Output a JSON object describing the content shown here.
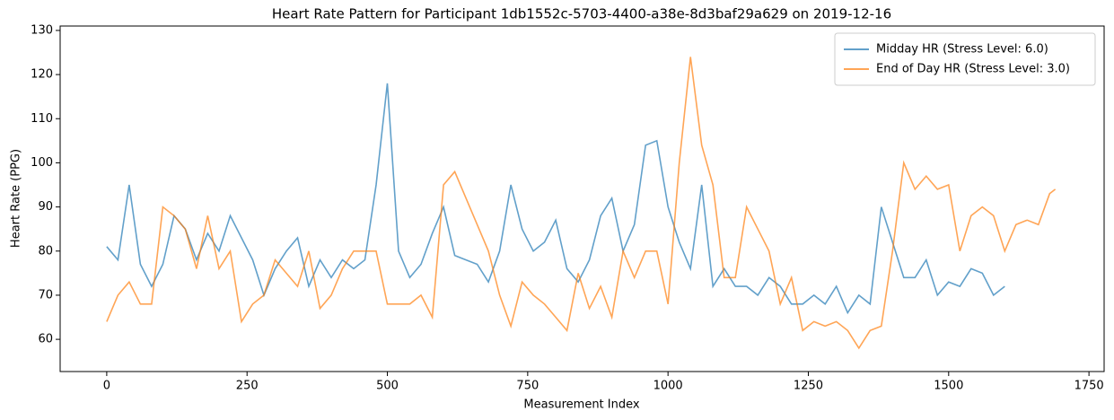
{
  "chart_data": {
    "type": "line",
    "title": "Heart Rate Pattern for Participant 1db1552c-5703-4400-a38e-8d3baf29a629 on 2019-12-16",
    "x_label": "Measurement Index",
    "y_label": "Heart Rate (PPG)",
    "xlim": [
      -83,
      1777
    ],
    "ylim": [
      52.7,
      131
    ],
    "xticks": [
      0,
      250,
      500,
      750,
      1000,
      1250,
      1500,
      1750
    ],
    "yticks": [
      60,
      70,
      80,
      90,
      100,
      110,
      120,
      130
    ],
    "legend": "upper right",
    "series": [
      {
        "name": "Midday HR (Stress Level: 6.0)",
        "color": "#1f77b4",
        "x": [
          0,
          20,
          40,
          60,
          80,
          100,
          120,
          140,
          160,
          180,
          200,
          220,
          240,
          260,
          280,
          300,
          320,
          340,
          360,
          380,
          400,
          420,
          440,
          460,
          480,
          500,
          520,
          540,
          560,
          580,
          600,
          620,
          640,
          660,
          680,
          700,
          720,
          740,
          760,
          780,
          800,
          820,
          840,
          860,
          880,
          900,
          920,
          940,
          960,
          980,
          1000,
          1020,
          1040,
          1060,
          1080,
          1100,
          1120,
          1140,
          1160,
          1180,
          1200,
          1220,
          1240,
          1260,
          1280,
          1300,
          1320,
          1340,
          1360,
          1380,
          1400,
          1420,
          1440,
          1460,
          1480,
          1500,
          1520,
          1540,
          1560,
          1580,
          1600
        ],
        "values": [
          81,
          78,
          95,
          77,
          72,
          77,
          88,
          85,
          78,
          84,
          80,
          88,
          83,
          78,
          70,
          76,
          80,
          83,
          72,
          78,
          74,
          78,
          76,
          78,
          95,
          118,
          80,
          74,
          77,
          84,
          90,
          79,
          78,
          77,
          73,
          80,
          95,
          85,
          80,
          82,
          87,
          76,
          73,
          78,
          88,
          92,
          80,
          86,
          104,
          105,
          90,
          82,
          76,
          95,
          72,
          76,
          72,
          72,
          70,
          74,
          72,
          68,
          68,
          70,
          68,
          72,
          66,
          70,
          68,
          90,
          82,
          74,
          74,
          78,
          70,
          73,
          72,
          76,
          75,
          70,
          72
        ]
      },
      {
        "name": "End of Day HR (Stress Level: 3.0)",
        "color": "#ff7f0e",
        "x": [
          0,
          20,
          40,
          60,
          80,
          100,
          120,
          140,
          160,
          180,
          200,
          220,
          240,
          260,
          280,
          300,
          320,
          340,
          360,
          380,
          400,
          420,
          440,
          460,
          480,
          500,
          520,
          540,
          560,
          580,
          600,
          620,
          640,
          660,
          680,
          700,
          720,
          740,
          760,
          780,
          800,
          820,
          840,
          860,
          880,
          900,
          920,
          940,
          960,
          980,
          1000,
          1020,
          1040,
          1060,
          1080,
          1100,
          1120,
          1140,
          1160,
          1180,
          1200,
          1220,
          1240,
          1260,
          1280,
          1300,
          1320,
          1340,
          1360,
          1380,
          1400,
          1420,
          1440,
          1460,
          1480,
          1500,
          1520,
          1540,
          1560,
          1580,
          1600,
          1620,
          1640,
          1660,
          1680,
          1690
        ],
        "values": [
          64,
          70,
          73,
          68,
          68,
          90,
          88,
          85,
          76,
          88,
          76,
          80,
          64,
          68,
          70,
          78,
          75,
          72,
          80,
          67,
          70,
          76,
          80,
          80,
          80,
          68,
          68,
          68,
          70,
          65,
          95,
          98,
          92,
          86,
          80,
          70,
          63,
          73,
          70,
          68,
          65,
          62,
          75,
          67,
          72,
          65,
          80,
          74,
          80,
          80,
          68,
          100,
          124,
          104,
          95,
          74,
          74,
          90,
          85,
          80,
          68,
          74,
          62,
          64,
          63,
          64,
          62,
          58,
          62,
          63,
          80,
          100,
          94,
          97,
          94,
          95,
          80,
          88,
          90,
          88,
          80,
          86,
          87,
          86,
          93,
          94
        ]
      }
    ]
  }
}
